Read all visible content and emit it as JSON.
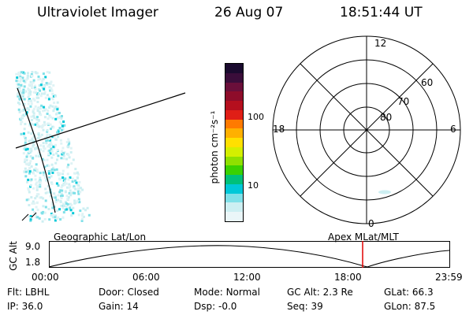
{
  "header": {
    "title": "Ultraviolet Imager",
    "date": "26 Aug 07",
    "time": "18:51:44 UT"
  },
  "colorbar": {
    "unit_label": "photon cm⁻²s⁻¹",
    "ticks": [
      "100",
      "10"
    ],
    "colors": [
      "#1a0a2e",
      "#3a0d3a",
      "#6a0f3a",
      "#8e0c2a",
      "#b50f1e",
      "#e01e16",
      "#ff7a00",
      "#ffb000",
      "#ffe000",
      "#d4ef00",
      "#8fe000",
      "#3ad100",
      "#00c07a",
      "#00c8d8",
      "#7fe0e8",
      "#cdeff2",
      "#eaf6f8"
    ]
  },
  "polar": {
    "hour_labels": [
      "12",
      "18",
      "6",
      "0"
    ],
    "lat_labels": [
      "60",
      "70",
      "80"
    ]
  },
  "timeline": {
    "ylabel": "GC Alt",
    "left_title": "Geographic Lat/Lon",
    "right_title": "Apex MLat/MLT",
    "y_ticks": [
      "9.0",
      "1.8"
    ],
    "x_ticks": [
      "00:00",
      "06:00",
      "12:00",
      "18:00",
      "23:59"
    ],
    "marker_color": "#e00000"
  },
  "status": {
    "row1": [
      {
        "label": "Flt:",
        "value": "LBHL"
      },
      {
        "label": "Door:",
        "value": "Closed"
      },
      {
        "label": "Mode:",
        "value": "Normal"
      },
      {
        "label": "GC Alt:",
        "value": "2.3 Re"
      },
      {
        "label": "GLat:",
        "value": "66.3"
      }
    ],
    "row2": [
      {
        "label": "IP:",
        "value": "36.0"
      },
      {
        "label": "Gain:",
        "value": "14"
      },
      {
        "label": "Dsp:",
        "value": "-0.0"
      },
      {
        "label": "Seq:",
        "value": "39"
      },
      {
        "label": "GLon:",
        "value": "87.5"
      }
    ]
  }
}
